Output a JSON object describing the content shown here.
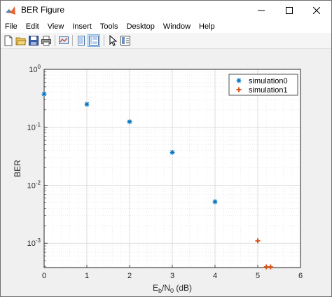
{
  "window": {
    "title": "BER Figure"
  },
  "menu": [
    "File",
    "Edit",
    "View",
    "Insert",
    "Tools",
    "Desktop",
    "Window",
    "Help"
  ],
  "toolbar": {
    "buttons": [
      "new-figure-icon",
      "open-file-icon",
      "save-icon",
      "print-icon",
      "link-plot-icon",
      "hide-plot-tools-icon",
      "show-plot-tools-icon",
      "edit-plot-arrow-icon",
      "insert-colorbar-icon"
    ]
  },
  "chart_data": {
    "type": "scatter",
    "xlabel_base": "E",
    "xlabel_sub1": "b",
    "xlabel_mid": "/N",
    "xlabel_sub2": "0",
    "xlabel_tail": " (dB)",
    "ylabel": "BER",
    "xlim": [
      0,
      6
    ],
    "ylim": [
      0.00038,
      1
    ],
    "yscale": "log",
    "grid": true,
    "minor_grid": true,
    "xticks": [
      0,
      1,
      2,
      3,
      4,
      5,
      6
    ],
    "yticks": [
      {
        "value": 1,
        "mantissa": "10",
        "exp": "0"
      },
      {
        "value": 0.1,
        "mantissa": "10",
        "exp": "-1"
      },
      {
        "value": 0.01,
        "mantissa": "10",
        "exp": "-2"
      },
      {
        "value": 0.001,
        "mantissa": "10",
        "exp": "-3"
      }
    ],
    "legend_position": "top-right",
    "series": [
      {
        "name": "simulation0",
        "marker": "asterisk",
        "color": "#0072BD",
        "x": [
          0,
          1,
          2,
          3,
          4
        ],
        "y": [
          0.375,
          0.25,
          0.125,
          0.037,
          0.0052
        ]
      },
      {
        "name": "simulation1",
        "marker": "plus",
        "color": "#D95319",
        "x": [
          5,
          5.2,
          5.3
        ],
        "y": [
          0.0011,
          0.00039,
          0.00039
        ]
      }
    ]
  }
}
